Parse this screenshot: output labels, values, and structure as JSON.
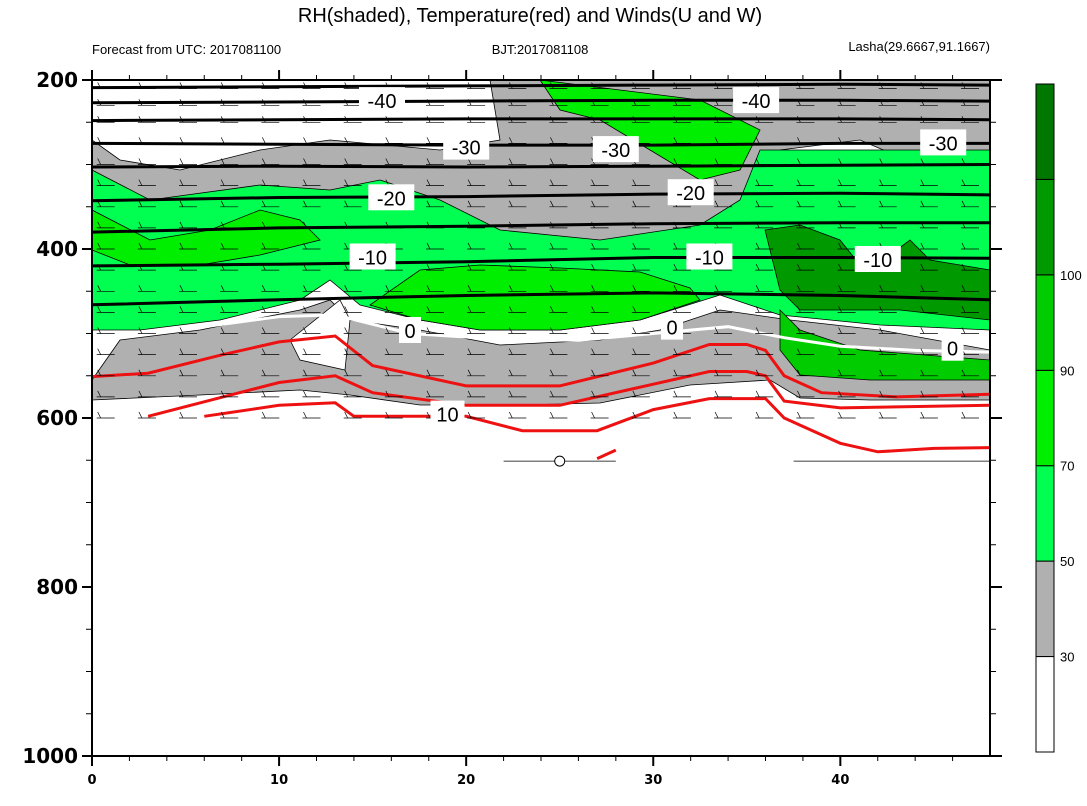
{
  "chart_data": {
    "type": "contour",
    "title": "RH(shaded), Temperature(red) and Winds(U and W)",
    "left_note": "Forecast from UTC: 2017081100",
    "center_note": "BJT:2017081108",
    "right_note": "Lasha(29.6667,91.1667)",
    "xlabel": "",
    "ylabel": "",
    "x_range": [
      0,
      48
    ],
    "y_range": [
      200,
      1000
    ],
    "x_ticks": [
      0,
      10,
      20,
      30,
      40
    ],
    "y_ticks": [
      200,
      400,
      600,
      800,
      1000
    ],
    "colorbar": {
      "levels": [
        "30",
        "50",
        "70",
        "90",
        "100"
      ],
      "colors": [
        "#ffffff",
        "#b0b0b0",
        "#00ff50",
        "#00ee00",
        "#00cc00",
        "#009900",
        "#007700"
      ]
    },
    "temperature_labels": [
      {
        "text": "-40",
        "x": 15.5,
        "p": 225
      },
      {
        "text": "-40",
        "x": 35.5,
        "p": 225
      },
      {
        "text": "-30",
        "x": 20,
        "p": 280
      },
      {
        "text": "-30",
        "x": 28,
        "p": 283
      },
      {
        "text": "-30",
        "x": 45.5,
        "p": 275
      },
      {
        "text": "-20",
        "x": 16,
        "p": 340
      },
      {
        "text": "-20",
        "x": 32,
        "p": 334
      },
      {
        "text": "-10",
        "x": 15,
        "p": 410
      },
      {
        "text": "-10",
        "x": 33,
        "p": 410
      },
      {
        "text": "-10",
        "x": 42,
        "p": 413
      },
      {
        "text": "0",
        "x": 17,
        "p": 497
      },
      {
        "text": "0",
        "x": 31,
        "p": 493
      },
      {
        "text": "0",
        "x": 46,
        "p": 518
      },
      {
        "text": "10",
        "x": 19,
        "p": 596
      }
    ],
    "isotherms_black": [
      {
        "level": -45,
        "x": [
          0,
          10,
          20,
          30,
          40,
          48
        ],
        "p": [
          209,
          208,
          207,
          206,
          205,
          206
        ]
      },
      {
        "level": -40,
        "x": [
          0,
          10,
          20,
          30,
          40,
          48
        ],
        "p": [
          227,
          226,
          225,
          224,
          224,
          225
        ]
      },
      {
        "level": -35,
        "x": [
          0,
          10,
          20,
          30,
          40,
          48
        ],
        "p": [
          248,
          247,
          246,
          246,
          246,
          247
        ]
      },
      {
        "level": -30,
        "x": [
          0,
          10,
          20,
          30,
          40,
          48
        ],
        "p": [
          275,
          276,
          277,
          277,
          275,
          275
        ]
      },
      {
        "level": -25,
        "x": [
          0,
          10,
          20,
          30,
          40,
          48
        ],
        "p": [
          303,
          302,
          303,
          302,
          301,
          300
        ]
      },
      {
        "level": -20,
        "x": [
          0,
          10,
          20,
          30,
          40,
          48
        ],
        "p": [
          343,
          339,
          338,
          335,
          334,
          336
        ]
      },
      {
        "level": -15,
        "x": [
          0,
          10,
          20,
          30,
          40,
          48
        ],
        "p": [
          380,
          375,
          373,
          370,
          369,
          369
        ]
      },
      {
        "level": -10,
        "x": [
          0,
          10,
          20,
          30,
          40,
          48
        ],
        "p": [
          420,
          418,
          415,
          410,
          410,
          411
        ]
      },
      {
        "level": -5,
        "x": [
          0,
          10,
          20,
          30,
          40,
          48
        ],
        "p": [
          466,
          460,
          455,
          452,
          455,
          460
        ]
      }
    ],
    "isotherm_zero": {
      "level": 0,
      "x": [
        0,
        5,
        10,
        13,
        17,
        22,
        26,
        30,
        34,
        37,
        40,
        44,
        48
      ],
      "p": [
        505,
        495,
        480,
        478,
        500,
        507,
        508,
        500,
        492,
        505,
        515,
        520,
        522
      ]
    },
    "isotherms_red": [
      {
        "level": 5,
        "x": [
          0,
          3,
          7,
          10,
          13,
          15,
          20,
          25,
          30,
          33,
          35,
          36,
          37,
          39,
          43,
          48
        ],
        "p": [
          551,
          547,
          525,
          510,
          503,
          538,
          562,
          562,
          535,
          513,
          513,
          520,
          550,
          570,
          575,
          572
        ]
      },
      {
        "level": 10,
        "x": [
          3,
          7,
          10,
          13,
          15,
          20,
          25,
          30,
          33,
          35,
          36,
          37,
          40,
          48
        ],
        "p": [
          598,
          575,
          558,
          550,
          570,
          585,
          585,
          560,
          545,
          545,
          550,
          580,
          588,
          585
        ]
      },
      {
        "level": 15,
        "x": [
          6,
          10,
          13,
          14,
          20,
          23,
          27,
          30,
          33,
          36,
          37,
          40,
          42,
          45,
          48
        ],
        "p": [
          598,
          585,
          582,
          598,
          598,
          615,
          615,
          590,
          577,
          577,
          600,
          630,
          640,
          636,
          635
        ]
      },
      {
        "level": 20,
        "x": [
          27,
          28
        ],
        "p": [
          648,
          638
        ]
      }
    ],
    "surface_wind_station": {
      "x": 25,
      "p": 651
    }
  }
}
